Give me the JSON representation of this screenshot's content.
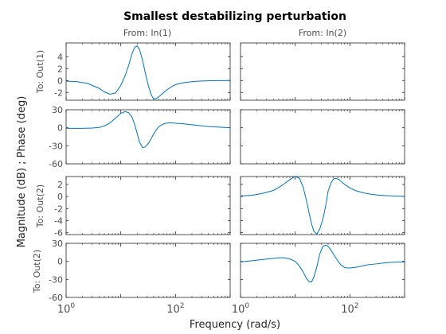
{
  "chart_data": {
    "type": "line",
    "title": "Smallest destabilizing perturbation",
    "xlabel": "Frequency  (rad/s)",
    "ylabel": "Magnitude (dB) ; Phase (deg)",
    "x_scale": "log",
    "xlim": [
      1,
      1000
    ],
    "x_ticks": [
      1,
      100
    ],
    "x_tick_labels": [
      {
        "base": "10",
        "exp": "0"
      },
      {
        "base": "10",
        "exp": "2"
      }
    ],
    "grid": false,
    "colors": {
      "line": "#0072BD",
      "axes": "#262626",
      "text": "#262626",
      "tick_text": "#4d4d4d"
    },
    "columns": [
      {
        "label": "From: In(1)"
      },
      {
        "label": "From: In(2)"
      }
    ],
    "rows": [
      {
        "label": "To: Out(1)"
      },
      {
        "label": "To: Out(2)"
      }
    ],
    "panels": [
      {
        "name": "out1-in1-magnitude",
        "row": 0,
        "col": 0,
        "kind": "magnitude",
        "ylim": [
          -3.3,
          6.3
        ],
        "yticks": [
          -2,
          0,
          2,
          4
        ],
        "x": [
          1,
          1.6,
          2.5,
          4,
          5,
          6.3,
          8,
          10,
          12,
          14,
          16,
          18,
          20,
          22,
          25,
          28,
          32,
          36,
          40,
          45,
          50,
          56,
          63,
          71,
          80,
          90,
          100,
          125,
          160,
          200,
          250,
          316,
          400,
          500,
          630,
          800,
          1000
        ],
        "y": [
          -0.1,
          -0.2,
          -0.5,
          -1.3,
          -1.9,
          -2.3,
          -2.1,
          -0.8,
          0.8,
          2.6,
          4.5,
          5.6,
          5.8,
          5.2,
          3.4,
          1.3,
          -0.9,
          -2.4,
          -3.1,
          -3.0,
          -2.7,
          -2.3,
          -1.9,
          -1.5,
          -1.2,
          -0.9,
          -0.7,
          -0.45,
          -0.3,
          -0.2,
          -0.12,
          -0.08,
          -0.05,
          -0.03,
          -0.02,
          -0.01,
          0.0
        ]
      },
      {
        "name": "out1-in1-phase",
        "row": 0,
        "col": 0,
        "kind": "phase",
        "ylim": [
          -60,
          30
        ],
        "yticks": [
          -60,
          -30,
          0,
          30
        ],
        "x": [
          1,
          2,
          3,
          4,
          5,
          6.3,
          8,
          10,
          12,
          14,
          16,
          18,
          20,
          22,
          25,
          28,
          32,
          36,
          40,
          45,
          50,
          56,
          63,
          71,
          80,
          90,
          100,
          125,
          160,
          200,
          250,
          316,
          400,
          500,
          630,
          800,
          1000
        ],
        "y": [
          -1,
          -1,
          -0.5,
          0.5,
          3,
          8,
          16,
          24,
          27,
          25,
          18,
          5,
          -10,
          -24,
          -33,
          -32,
          -26,
          -18,
          -10,
          -3,
          2,
          5,
          7,
          8,
          8,
          8,
          7.5,
          7,
          6,
          5,
          4,
          3,
          2,
          1.5,
          1,
          0.5,
          0
        ]
      },
      {
        "name": "out1-in2-magnitude",
        "row": 0,
        "col": 1,
        "kind": "magnitude",
        "ylim": [
          -3.3,
          6.3
        ],
        "yticks": [
          -2,
          0,
          2,
          4
        ],
        "x": [],
        "y": []
      },
      {
        "name": "out1-in2-phase",
        "row": 0,
        "col": 1,
        "kind": "phase",
        "ylim": [
          -60,
          30
        ],
        "yticks": [
          -60,
          -30,
          0,
          30
        ],
        "x": [],
        "y": []
      },
      {
        "name": "out2-in1-magnitude",
        "row": 1,
        "col": 0,
        "kind": "magnitude",
        "ylim": [
          -6.3,
          3.3
        ],
        "yticks": [
          -6,
          -4,
          -2,
          0,
          2
        ],
        "x": [],
        "y": []
      },
      {
        "name": "out2-in1-phase",
        "row": 1,
        "col": 0,
        "kind": "phase",
        "ylim": [
          -60,
          30
        ],
        "yticks": [
          -60,
          -30,
          0,
          30
        ],
        "x": [],
        "y": []
      },
      {
        "name": "out2-in2-magnitude",
        "row": 1,
        "col": 1,
        "kind": "magnitude",
        "ylim": [
          -6.3,
          3.3
        ],
        "yticks": [
          -6,
          -4,
          -2,
          0,
          2
        ],
        "x": [
          1,
          1.6,
          2.5,
          4,
          5,
          6.3,
          8,
          10,
          12,
          14,
          16,
          18,
          20,
          22,
          25,
          28,
          32,
          36,
          40,
          45,
          50,
          56,
          63,
          71,
          80,
          90,
          100,
          125,
          160,
          200,
          250,
          316,
          400,
          500,
          630,
          800,
          1000
        ],
        "y": [
          0.1,
          0.2,
          0.5,
          1.0,
          1.5,
          2.1,
          2.8,
          3.3,
          3.0,
          1.5,
          -0.6,
          -2.8,
          -4.6,
          -5.8,
          -6.2,
          -5.4,
          -3.8,
          -1.6,
          0.9,
          2.2,
          2.9,
          3.0,
          2.8,
          2.4,
          2.0,
          1.7,
          1.4,
          1.0,
          0.7,
          0.5,
          0.35,
          0.25,
          0.18,
          0.12,
          0.08,
          0.05,
          0.03
        ]
      },
      {
        "name": "out2-in2-phase",
        "row": 1,
        "col": 1,
        "kind": "phase",
        "ylim": [
          -60,
          30
        ],
        "yticks": [
          -60,
          -30,
          0,
          30
        ],
        "x": [
          1,
          1.6,
          2.5,
          4,
          5,
          6.3,
          8,
          10,
          12,
          14,
          16,
          18,
          20,
          22,
          25,
          28,
          32,
          36,
          40,
          45,
          50,
          56,
          63,
          71,
          80,
          90,
          100,
          125,
          160,
          200,
          250,
          316,
          400,
          500,
          630,
          800,
          1000
        ],
        "y": [
          -1,
          1,
          3,
          5,
          6,
          6,
          4,
          0,
          -8,
          -18,
          -28,
          -34,
          -34,
          -26,
          -8,
          12,
          25,
          27,
          25,
          19,
          12,
          5,
          -2,
          -7,
          -10,
          -11,
          -11,
          -10,
          -8,
          -6,
          -5,
          -4,
          -3,
          -2,
          -1.5,
          -1,
          -1
        ]
      }
    ]
  }
}
